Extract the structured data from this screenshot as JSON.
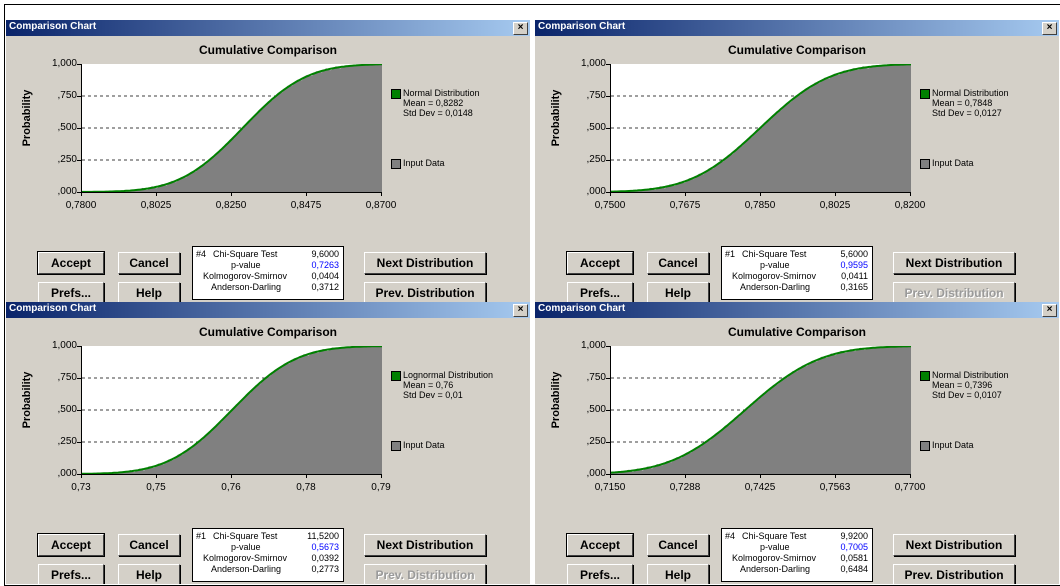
{
  "windows": [
    {
      "title": "Comparison Chart",
      "chart_title": "Cumulative Comparison",
      "close_label": "×",
      "y_label": "Probability",
      "y_ticks": [
        "1,000",
        ",750",
        ",500",
        ",250",
        ",000"
      ],
      "x_ticks": [
        "0,7800",
        "0,8025",
        "0,8250",
        "0,8475",
        "0,8700"
      ],
      "legend": {
        "dist_name": "Normal Distribution",
        "param1": "Mean = 0,8282",
        "param2": "Std Dev = 0,0148",
        "input_label": "Input Data"
      },
      "stats": {
        "test_num": "#4",
        "chi_label": "Chi-Square Test",
        "chi_value": "9,6000",
        "p_label": "p-value",
        "p_value": "0,7263",
        "ks_label": "Kolmogorov-Smirnov",
        "ks_value": "0,0404",
        "ad_label": "Anderson-Darling",
        "ad_value": "0,3712"
      },
      "buttons": {
        "accept": "Accept",
        "cancel": "Cancel",
        "prefs": "Prefs...",
        "help": "Help",
        "next": "Next Distribution",
        "prev": "Prev. Distribution"
      },
      "prev_enabled": true,
      "chart_data": {
        "type": "area",
        "title": "Cumulative Comparison",
        "xlabel": "",
        "ylabel": "Probability",
        "xlim": [
          0.78,
          0.87
        ],
        "ylim": [
          0,
          1
        ],
        "series": [
          {
            "name": "Normal Distribution",
            "kind": "normal_cdf",
            "mean": 0.8282,
            "sd": 0.0148,
            "color": "#008000"
          },
          {
            "name": "Input Data",
            "kind": "empirical",
            "color": "#808080"
          }
        ]
      }
    },
    {
      "title": "Comparison Chart",
      "chart_title": "Cumulative Comparison",
      "close_label": "×",
      "y_label": "Probability",
      "y_ticks": [
        "1,000",
        ",750",
        ",500",
        ",250",
        ",000"
      ],
      "x_ticks": [
        "0,7500",
        "0,7675",
        "0,7850",
        "0,8025",
        "0,8200"
      ],
      "legend": {
        "dist_name": "Normal Distribution",
        "param1": "Mean = 0,7848",
        "param2": "Std Dev = 0,0127",
        "input_label": "Input Data"
      },
      "stats": {
        "test_num": "#1",
        "chi_label": "Chi-Square Test",
        "chi_value": "5,6000",
        "p_label": "p-value",
        "p_value": "0,9595",
        "ks_label": "Kolmogorov-Smirnov",
        "ks_value": "0,0411",
        "ad_label": "Anderson-Darling",
        "ad_value": "0,3165"
      },
      "buttons": {
        "accept": "Accept",
        "cancel": "Cancel",
        "prefs": "Prefs...",
        "help": "Help",
        "next": "Next Distribution",
        "prev": "Prev. Distribution"
      },
      "prev_enabled": false,
      "chart_data": {
        "type": "area",
        "title": "Cumulative Comparison",
        "xlabel": "",
        "ylabel": "Probability",
        "xlim": [
          0.75,
          0.82
        ],
        "ylim": [
          0,
          1
        ],
        "series": [
          {
            "name": "Normal Distribution",
            "kind": "normal_cdf",
            "mean": 0.7848,
            "sd": 0.0127,
            "color": "#008000"
          },
          {
            "name": "Input Data",
            "kind": "empirical",
            "color": "#808080"
          }
        ]
      }
    },
    {
      "title": "Comparison Chart",
      "chart_title": "Cumulative Comparison",
      "close_label": "×",
      "y_label": "Probability",
      "y_ticks": [
        "1,000",
        ",750",
        ",500",
        ",250",
        ",000"
      ],
      "x_ticks": [
        "0,73",
        "0,75",
        "0,76",
        "0,78",
        "0,79"
      ],
      "legend": {
        "dist_name": "Lognormal Distribution",
        "param1": "Mean = 0,76",
        "param2": "Std Dev = 0,01",
        "input_label": "Input Data"
      },
      "stats": {
        "test_num": "#1",
        "chi_label": "Chi-Square Test",
        "chi_value": "11,5200",
        "p_label": "p-value",
        "p_value": "0,5673",
        "ks_label": "Kolmogorov-Smirnov",
        "ks_value": "0,0392",
        "ad_label": "Anderson-Darling",
        "ad_value": "0,2773"
      },
      "buttons": {
        "accept": "Accept",
        "cancel": "Cancel",
        "prefs": "Prefs...",
        "help": "Help",
        "next": "Next Distribution",
        "prev": "Prev. Distribution"
      },
      "prev_enabled": false,
      "chart_data": {
        "type": "area",
        "title": "Cumulative Comparison",
        "xlabel": "",
        "ylabel": "Probability",
        "xlim": [
          0.73,
          0.79
        ],
        "ylim": [
          0,
          1
        ],
        "series": [
          {
            "name": "Lognormal Distribution",
            "kind": "normal_cdf",
            "mean": 0.76,
            "sd": 0.01,
            "color": "#008000"
          },
          {
            "name": "Input Data",
            "kind": "empirical",
            "color": "#808080"
          }
        ]
      }
    },
    {
      "title": "Comparison Chart",
      "chart_title": "Cumulative Comparison",
      "close_label": "×",
      "y_label": "Probability",
      "y_ticks": [
        "1,000",
        ",750",
        ",500",
        ",250",
        ",000"
      ],
      "x_ticks": [
        "0,7150",
        "0,7288",
        "0,7425",
        "0,7563",
        "0,7700"
      ],
      "legend": {
        "dist_name": "Normal Distribution",
        "param1": "Mean = 0,7396",
        "param2": "Std Dev = 0,0107",
        "input_label": "Input Data"
      },
      "stats": {
        "test_num": "#4",
        "chi_label": "Chi-Square Test",
        "chi_value": "9,9200",
        "p_label": "p-value",
        "p_value": "0,7005",
        "ks_label": "Kolmogorov-Smirnov",
        "ks_value": "0,0581",
        "ad_label": "Anderson-Darling",
        "ad_value": "0,6484"
      },
      "buttons": {
        "accept": "Accept",
        "cancel": "Cancel",
        "prefs": "Prefs...",
        "help": "Help",
        "next": "Next Distribution",
        "prev": "Prev. Distribution"
      },
      "prev_enabled": true,
      "chart_data": {
        "type": "area",
        "title": "Cumulative Comparison",
        "xlabel": "",
        "ylabel": "Probability",
        "xlim": [
          0.715,
          0.77
        ],
        "ylim": [
          0,
          1
        ],
        "series": [
          {
            "name": "Normal Distribution",
            "kind": "normal_cdf",
            "mean": 0.7396,
            "sd": 0.0107,
            "color": "#008000"
          },
          {
            "name": "Input Data",
            "kind": "empirical",
            "color": "#808080"
          }
        ]
      }
    }
  ]
}
